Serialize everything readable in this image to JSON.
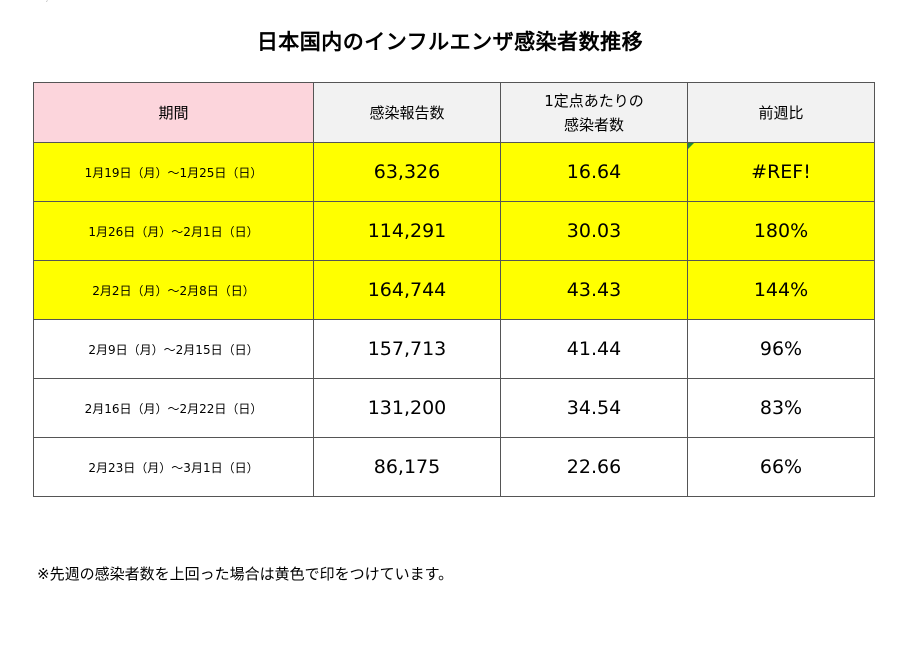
{
  "corner_mark": "′",
  "title": "日本国内のインフルエンザ感染者数推移",
  "table": {
    "headers": {
      "period": "期間",
      "reports": "感染報告数",
      "per_point_line1": "1定点あたりの",
      "per_point_line2": "感染者数",
      "week_ratio": "前週比"
    },
    "rows": [
      {
        "period": "1月19日（月）～1月25日（日）",
        "reports": "63,326",
        "per_point": "16.64",
        "ratio": "#REF!"
      },
      {
        "period": "1月26日（月）～2月1日（日）",
        "reports": "114,291",
        "per_point": "30.03",
        "ratio": "180%"
      },
      {
        "period": "2月2日（月）～2月8日（日）",
        "reports": "164,744",
        "per_point": "43.43",
        "ratio": "144%"
      },
      {
        "period": "2月9日（月）～2月15日（日）",
        "reports": "157,713",
        "per_point": "41.44",
        "ratio": "96%"
      },
      {
        "period": "2月16日（月）～2月22日（日）",
        "reports": "131,200",
        "per_point": "34.54",
        "ratio": "83%"
      },
      {
        "period": "2月23日（月）～3月1日（日）",
        "reports": "86,175",
        "per_point": "22.66",
        "ratio": "66%"
      }
    ]
  },
  "highlight_color": "#ffff00",
  "header_period_color": "#fcd5dc",
  "note": "※先週の感染者数を上回った場合は黄色で印をつけています。"
}
